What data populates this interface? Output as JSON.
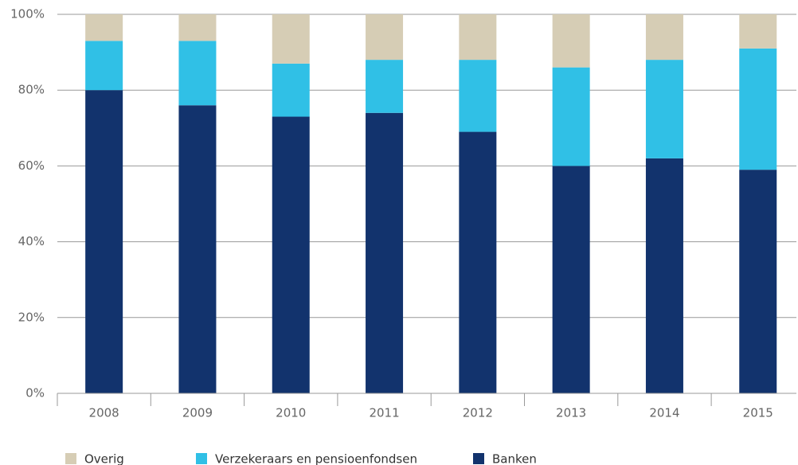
{
  "chart_data": {
    "type": "stacked_bar",
    "categories": [
      "2008",
      "2009",
      "2010",
      "2011",
      "2012",
      "2013",
      "2014",
      "2015"
    ],
    "series": [
      {
        "name": "Overig",
        "color": "#d6cdb5",
        "values": [
          7,
          7,
          13,
          12,
          12,
          14,
          12,
          9
        ]
      },
      {
        "name": "Verzekeraars en pensioenfondsen",
        "color": "#30c0e6",
        "values": [
          13,
          17,
          14,
          14,
          19,
          26,
          26,
          32
        ]
      },
      {
        "name": "Banken",
        "color": "#12336d",
        "values": [
          80,
          76,
          73,
          74,
          69,
          60,
          62,
          59
        ]
      }
    ],
    "ylim": [
      0,
      100
    ],
    "yticks": [
      {
        "value": 0,
        "label": "0%"
      },
      {
        "value": 20,
        "label": "20%"
      },
      {
        "value": 40,
        "label": "40%"
      },
      {
        "value": 60,
        "label": "60%"
      },
      {
        "value": 80,
        "label": "80%"
      },
      {
        "value": 100,
        "label": "100%"
      }
    ],
    "grid": true,
    "legend": "bottom"
  }
}
